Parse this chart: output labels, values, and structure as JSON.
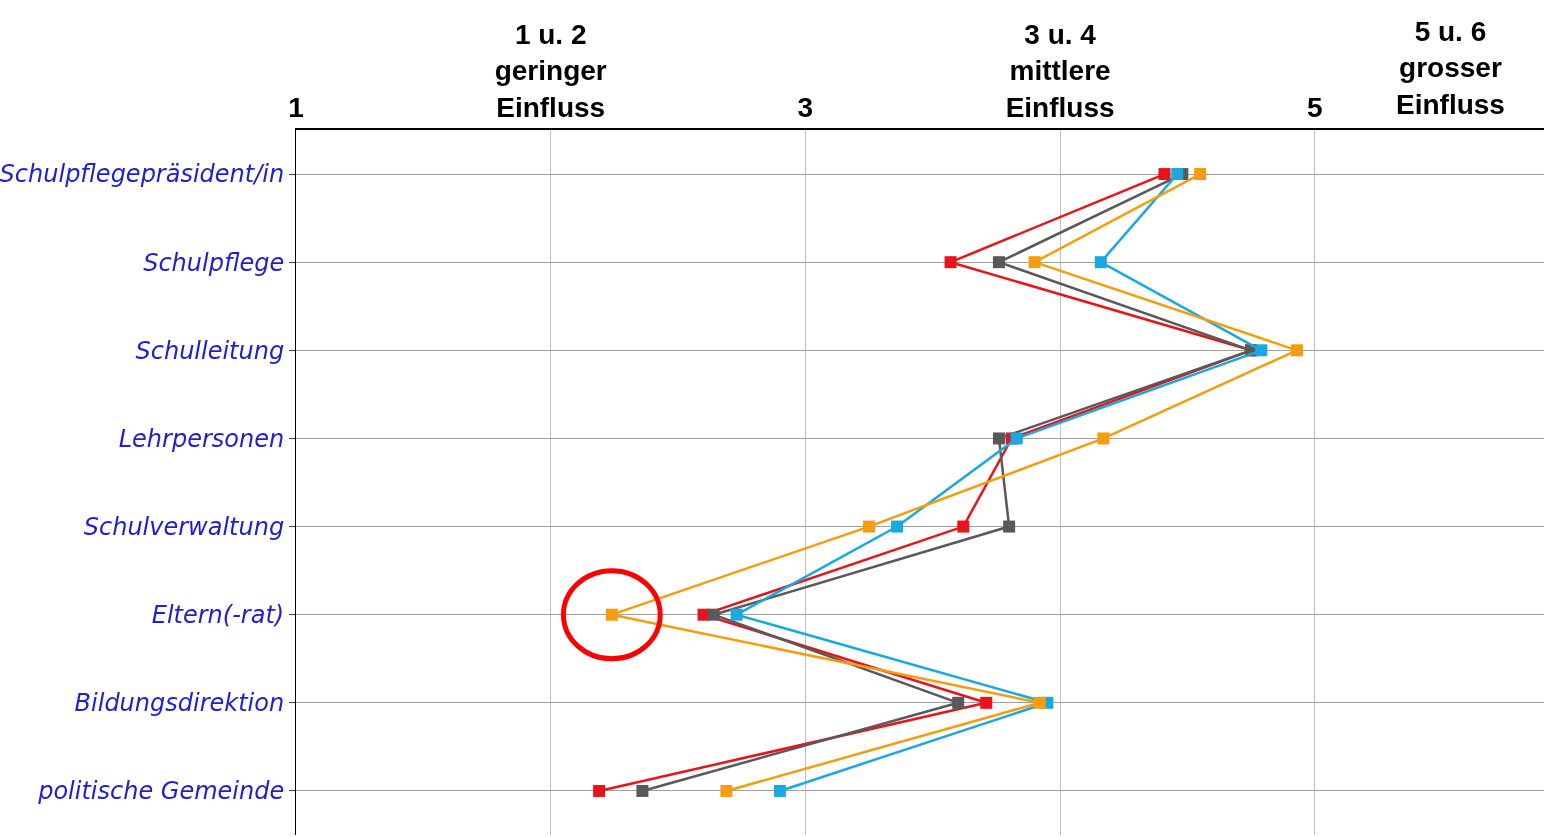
{
  "chart_data": {
    "type": "line",
    "orientation": "horizontal",
    "marker": "square",
    "grid": true,
    "categories": [
      "Schulpflegepräsident/in",
      "Schulpflege",
      "Schulleitung",
      "Lehrpersonen",
      "Schulverwaltung",
      "Eltern(-rat)",
      "Bildungsdirektion",
      "politische Gemeinde"
    ],
    "xlim": [
      1,
      5.9
    ],
    "xticks": [
      1,
      {
        "value": 2,
        "label": "1 u. 2\ngeringer\nEinfluss"
      },
      3,
      {
        "value": 4,
        "label": "3 u. 4\nmittlere\nEinfluss"
      },
      5
    ],
    "annotations": [
      "5 u. 6\ngrosser\nEinfluss"
    ],
    "series": [
      {
        "color": "#e8141c",
        "values": [
          4.41,
          3.57,
          4.75,
          3.81,
          3.62,
          2.6,
          3.71,
          2.19
        ]
      },
      {
        "color": "#595959",
        "values": [
          4.48,
          3.76,
          4.75,
          3.76,
          3.8,
          2.64,
          3.6,
          2.36
        ]
      },
      {
        "color": "#1ba8e0",
        "values": [
          4.46,
          4.16,
          4.79,
          3.83,
          3.36,
          2.73,
          3.95,
          2.9
        ]
      },
      {
        "color": "#f59d10",
        "values": [
          4.55,
          3.9,
          4.93,
          4.17,
          3.25,
          2.24,
          3.92,
          2.69
        ]
      }
    ]
  }
}
